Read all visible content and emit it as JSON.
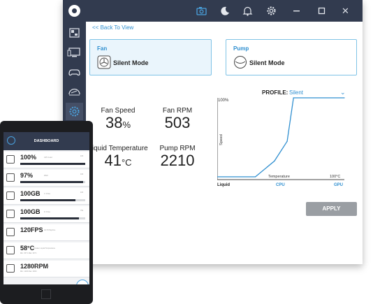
{
  "colors": {
    "titlebar": "#323b4f",
    "accent": "#2f8fd0",
    "card_border": "#7fc3e6",
    "apply_disabled": "#9a9ea3"
  },
  "titlebar": {
    "icons": [
      "app-logo-icon",
      "camera-icon",
      "moon-icon",
      "bell-icon",
      "gear-icon",
      "minimize-icon",
      "maximize-icon",
      "close-icon"
    ],
    "close_glyph": "✕"
  },
  "sidebar": {
    "icons": [
      "dashboard-icon",
      "monitor-icon",
      "gamepad-icon",
      "speedometer-icon",
      "fan-settings-icon"
    ]
  },
  "main": {
    "back_link": "<< Back To View",
    "fan_card": {
      "title": "Fan",
      "mode": "Silent Mode"
    },
    "pump_card": {
      "title": "Pump",
      "mode": "Silent Mode"
    },
    "stats": {
      "fan_speed_label": "Fan Speed",
      "fan_speed_value": "38",
      "fan_speed_unit": "%",
      "fan_rpm_label": "Fan RPM",
      "fan_rpm_value": "503",
      "liquid_temp_label": "Liquid Temperature",
      "liquid_temp_value": "41",
      "liquid_temp_unit": "°C",
      "pump_rpm_label": "Pump RPM",
      "pump_rpm_value": "2210"
    },
    "profile": {
      "label": "PROFILE:",
      "value": "Silent"
    },
    "apply_label": "APPLY"
  },
  "chart_data": {
    "type": "line",
    "title": "",
    "xlabel": "Temperature",
    "ylabel": "Speed",
    "y_max_label": "100%",
    "x_max_label": "100°C",
    "series_labels": [
      "Liquid",
      "CPU",
      "GPU"
    ],
    "x": [
      0,
      30,
      45,
      55,
      60,
      100
    ],
    "y": [
      0,
      0,
      20,
      45,
      100,
      100
    ],
    "xlim": [
      0,
      100
    ],
    "ylim": [
      0,
      100
    ]
  },
  "phone": {
    "title": "DASHBOARD",
    "rows": [
      {
        "value": "100%",
        "sub": "GPU Load",
        "end": "100",
        "fill": 1.0
      },
      {
        "value": "97%",
        "sub": "RAM",
        "end": "100",
        "fill": 0.97
      },
      {
        "value": "100GB",
        "sub": "C: Drive",
        "end": "100",
        "fill": 0.85
      },
      {
        "value": "100GB",
        "sub": "D: Drive",
        "end": "750",
        "fill": 0.9
      },
      {
        "value": "120FPS",
        "sub": "Alt Hi Playtime",
        "end": "",
        "fill": 0
      },
      {
        "value": "58°C",
        "sub": "Kraken Liquid Temperature",
        "end": "",
        "fill": 0,
        "sub2": "Min: 30°C    Max: 60°C"
      },
      {
        "value": "1280RPM",
        "sub": "Kraken Fan Speed",
        "end": "",
        "fill": 0,
        "sub2": "Min: 1200    Max: 2000"
      }
    ]
  }
}
